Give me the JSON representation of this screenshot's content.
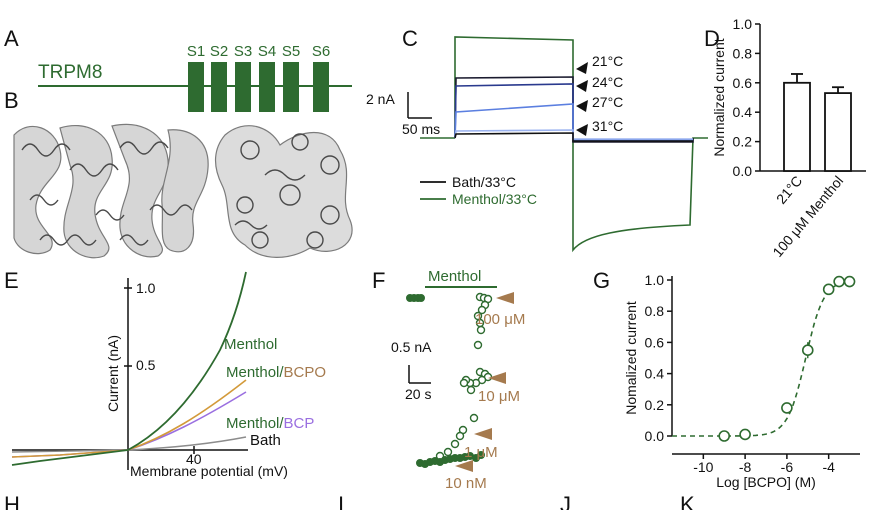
{
  "colors": {
    "green": "#2e6b30",
    "dark": "#1b1b2f",
    "blue": "#5b7fe0",
    "lightblue": "#9bb3f0",
    "brown": "#a57a4e",
    "purple": "#9a6fe0",
    "gray": "#8c8c8c",
    "orange": "#d39a3a"
  },
  "panels": {
    "a": "A",
    "b": "B",
    "c": "C",
    "d": "D",
    "e": "E",
    "f": "F",
    "g": "G"
  },
  "bottom_letters": [
    "H",
    "I",
    "J",
    "K"
  ],
  "panelA": {
    "protein": "TRPM8",
    "segments": [
      "S1",
      "S2",
      "S3",
      "S4",
      "S5",
      "S6"
    ]
  },
  "panelC": {
    "scale_current": "2 nA",
    "scale_time": "50 ms",
    "temps": [
      "21°C",
      "24°C",
      "27°C",
      "31°C"
    ],
    "legend": [
      "Bath/33°C",
      "Menthol/33°C"
    ]
  },
  "chart_data": [
    {
      "type": "bar",
      "panel": "D",
      "categories": [
        "21°C",
        "100 μM Menthol"
      ],
      "values": [
        0.6,
        0.53
      ],
      "errors": [
        0.06,
        0.04
      ],
      "ylabel": "Normalized current",
      "ylim": [
        0.0,
        1.0
      ],
      "yticks": [
        "0.0",
        "0.2",
        "0.4",
        "0.6",
        "0.8",
        "1.0"
      ]
    },
    {
      "type": "line",
      "panel": "E",
      "xlabel": "Membrane potential (mV)",
      "ylabel": "Current (nA)",
      "xtick": "40",
      "yticks": [
        "0.5",
        "1.0"
      ],
      "series": [
        {
          "name": "Menthol",
          "end": 1.1
        },
        {
          "name": "Menthol/BCPO",
          "end": 0.4
        },
        {
          "name": "Menthol/BCP",
          "end": 0.37
        },
        {
          "name": "Bath",
          "end": 0.04
        }
      ],
      "labels": {
        "menthol": "Menthol",
        "bcpo_a": "Menthol/",
        "bcpo_b": "BCPO",
        "bcp_a": "Menthol/",
        "bcp_b": "BCP",
        "bath": "Bath"
      }
    },
    {
      "type": "scatter",
      "panel": "F",
      "bar_label": "Menthol",
      "scale_current": "0.5 nA",
      "scale_time": "20 s",
      "concentrations": [
        "100 μM",
        "10 μM",
        "1 μM",
        "10 nM"
      ]
    },
    {
      "type": "scatter",
      "panel": "G",
      "xlabel": "Log [BCPO] (M)",
      "ylabel": "Nomalized current",
      "xticks": [
        "-10",
        "-8",
        "-6",
        "-4"
      ],
      "yticks": [
        "0.0",
        "0.2",
        "0.4",
        "0.6",
        "0.8",
        "1.0"
      ],
      "xlim": [
        -11.5,
        -2.5
      ],
      "ylim": [
        0.0,
        1.0
      ],
      "x": [
        -9,
        -8,
        -6,
        -5,
        -4,
        -3.5,
        -3
      ],
      "y": [
        0.0,
        0.01,
        0.18,
        0.55,
        0.94,
        0.99,
        0.99
      ]
    }
  ]
}
